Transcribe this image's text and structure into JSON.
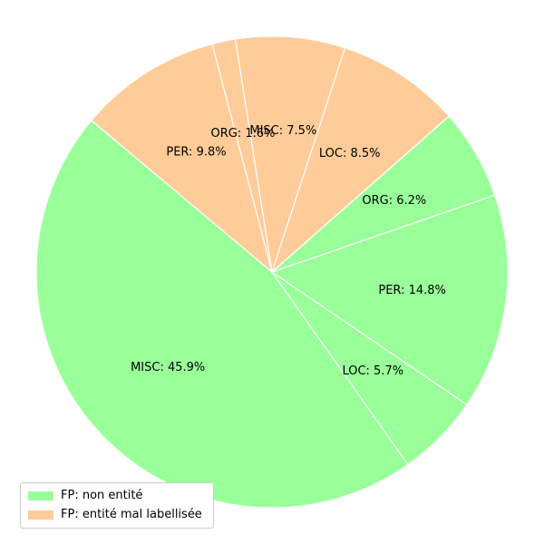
{
  "chart_data": {
    "type": "pie",
    "slices": [
      {
        "label": "MISC: 45.9%",
        "value": 45.9,
        "group": 0
      },
      {
        "label": "LOC: 5.7%",
        "value": 5.7,
        "group": 0
      },
      {
        "label": "PER: 14.8%",
        "value": 14.8,
        "group": 0
      },
      {
        "label": "ORG: 6.2%",
        "value": 6.2,
        "group": 0
      },
      {
        "label": "LOC: 8.5%",
        "value": 8.5,
        "group": 1
      },
      {
        "label": "MISC: 7.5%",
        "value": 7.5,
        "group": 1
      },
      {
        "label": "ORG: 1.6%",
        "value": 1.6,
        "group": 1
      },
      {
        "label": "PER: 9.8%",
        "value": 9.8,
        "group": 1
      }
    ],
    "groups": [
      {
        "name": "FP: non entité",
        "color": "#99ff99"
      },
      {
        "name": "FP: entité mal labellisée",
        "color": "#ffcc99"
      }
    ],
    "start_angle_deg": 140,
    "direction": "counterclockwise",
    "edge_color": "#ffffff",
    "legend_position": "lower-left"
  }
}
